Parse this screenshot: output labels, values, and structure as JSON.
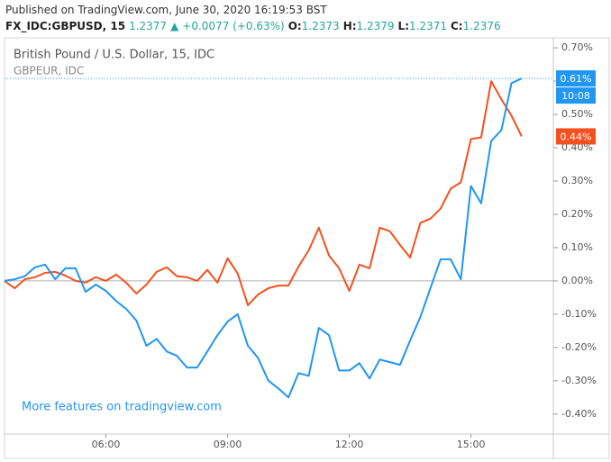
{
  "header": {
    "published": "Published on TradingView.com, June 30, 2020 16:19:53 BST",
    "symbol": "FX_IDC:GBPUSD, 15",
    "last": "1.2377",
    "arrow": "▲",
    "change": "+0.0077 (+0.63%)",
    "ohlc": [
      {
        "label": "O:",
        "value": "1.2373"
      },
      {
        "label": "H:",
        "value": "1.2379"
      },
      {
        "label": "L:",
        "value": "1.2371"
      },
      {
        "label": "C:",
        "value": "1.2376"
      }
    ]
  },
  "chart_data": {
    "type": "line",
    "watermark": "More features on tradingview.com",
    "countdown": "10:08",
    "x": [
      3.5,
      3.75,
      4,
      4.25,
      4.5,
      4.75,
      5,
      5.25,
      5.5,
      5.75,
      6,
      6.25,
      6.5,
      6.75,
      7,
      7.25,
      7.5,
      7.75,
      8,
      8.25,
      8.5,
      8.75,
      9,
      9.25,
      9.5,
      9.75,
      10,
      10.25,
      10.5,
      10.75,
      11,
      11.25,
      11.5,
      11.75,
      12,
      12.25,
      12.5,
      12.75,
      13,
      13.25,
      13.5,
      13.75,
      14,
      14.25,
      14.5,
      14.75,
      15,
      15.25,
      15.5,
      15.75,
      16,
      16.25
    ],
    "xlim": [
      3.5,
      17.03
    ],
    "xticks": [
      {
        "value": 6,
        "label": "06:00"
      },
      {
        "value": 9,
        "label": "09:00"
      },
      {
        "value": 12,
        "label": "12:00"
      },
      {
        "value": 15,
        "label": "15:00"
      }
    ],
    "ylim": [
      -0.46,
      0.73
    ],
    "yticks": [
      {
        "value": 0.7,
        "label": "0.70%"
      },
      {
        "value": 0.6,
        "label": "0.60%"
      },
      {
        "value": 0.5,
        "label": "0.50%"
      },
      {
        "value": 0.4,
        "label": "0.40%"
      },
      {
        "value": 0.3,
        "label": "0.30%"
      },
      {
        "value": 0.2,
        "label": "0.20%"
      },
      {
        "value": 0.1,
        "label": "0.10%"
      },
      {
        "value": 0,
        "label": "0.00%"
      },
      {
        "value": -0.1,
        "label": "-0.10%"
      },
      {
        "value": -0.2,
        "label": "-0.20%"
      },
      {
        "value": -0.3,
        "label": "-0.30%"
      },
      {
        "value": -0.4,
        "label": "-0.40%"
      }
    ],
    "grid": false,
    "zero_line": true,
    "series": [
      {
        "name": "British Pound / U.S. Dollar, 15, IDC",
        "color": "#2196f3",
        "values": [
          0,
          0.005,
          0.014,
          0.041,
          0.049,
          0.005,
          0.038,
          0.038,
          -0.033,
          -0.011,
          -0.03,
          -0.06,
          -0.084,
          -0.119,
          -0.195,
          -0.174,
          -0.212,
          -0.225,
          -0.26,
          -0.26,
          -0.212,
          -0.163,
          -0.122,
          -0.1,
          -0.195,
          -0.231,
          -0.299,
          -0.323,
          -0.35,
          -0.277,
          -0.285,
          -0.141,
          -0.163,
          -0.269,
          -0.269,
          -0.247,
          -0.293,
          -0.236,
          -0.244,
          -0.252,
          -0.179,
          -0.109,
          -0.022,
          0.065,
          0.065,
          0.005,
          0.285,
          0.233,
          0.42,
          0.453,
          0.594,
          0.608
        ],
        "value_labels": [
          null,
          null,
          null,
          null,
          null,
          null,
          null,
          null,
          null,
          null,
          null,
          null,
          null,
          null,
          null,
          null,
          null,
          null,
          null,
          null,
          null,
          null,
          null,
          null,
          null,
          null,
          null,
          null,
          null,
          null,
          null,
          null,
          null,
          null,
          null,
          null,
          null,
          null,
          null,
          null,
          null,
          null,
          null,
          null,
          null,
          null,
          null,
          null,
          null,
          null,
          null,
          "0.61%"
        ]
      },
      {
        "name": "GBPEUR, IDC",
        "color": "#f4511e",
        "values": [
          0,
          -0.022,
          0.005,
          0.011,
          0.024,
          0.027,
          0.016,
          0,
          -0.005,
          0.011,
          0,
          0.019,
          -0.005,
          -0.038,
          -0.011,
          0.027,
          0.041,
          0.014,
          0.011,
          0,
          0.033,
          -0.005,
          0.068,
          0.022,
          -0.073,
          -0.041,
          -0.022,
          -0.014,
          -0.014,
          0.043,
          0.092,
          0.16,
          0.076,
          0.038,
          -0.03,
          0.049,
          0.038,
          0.16,
          0.149,
          0.108,
          0.07,
          0.174,
          0.187,
          0.217,
          0.277,
          0.296,
          0.426,
          0.431,
          0.6,
          0.545,
          0.496,
          0.434
        ],
        "value_labels": [
          null,
          null,
          null,
          null,
          null,
          null,
          null,
          null,
          null,
          null,
          null,
          null,
          null,
          null,
          null,
          null,
          null,
          null,
          null,
          null,
          null,
          null,
          null,
          null,
          null,
          null,
          null,
          null,
          null,
          null,
          null,
          null,
          null,
          null,
          null,
          null,
          null,
          null,
          null,
          null,
          null,
          null,
          null,
          null,
          null,
          null,
          null,
          null,
          null,
          null,
          null,
          "0.44%"
        ]
      }
    ]
  }
}
